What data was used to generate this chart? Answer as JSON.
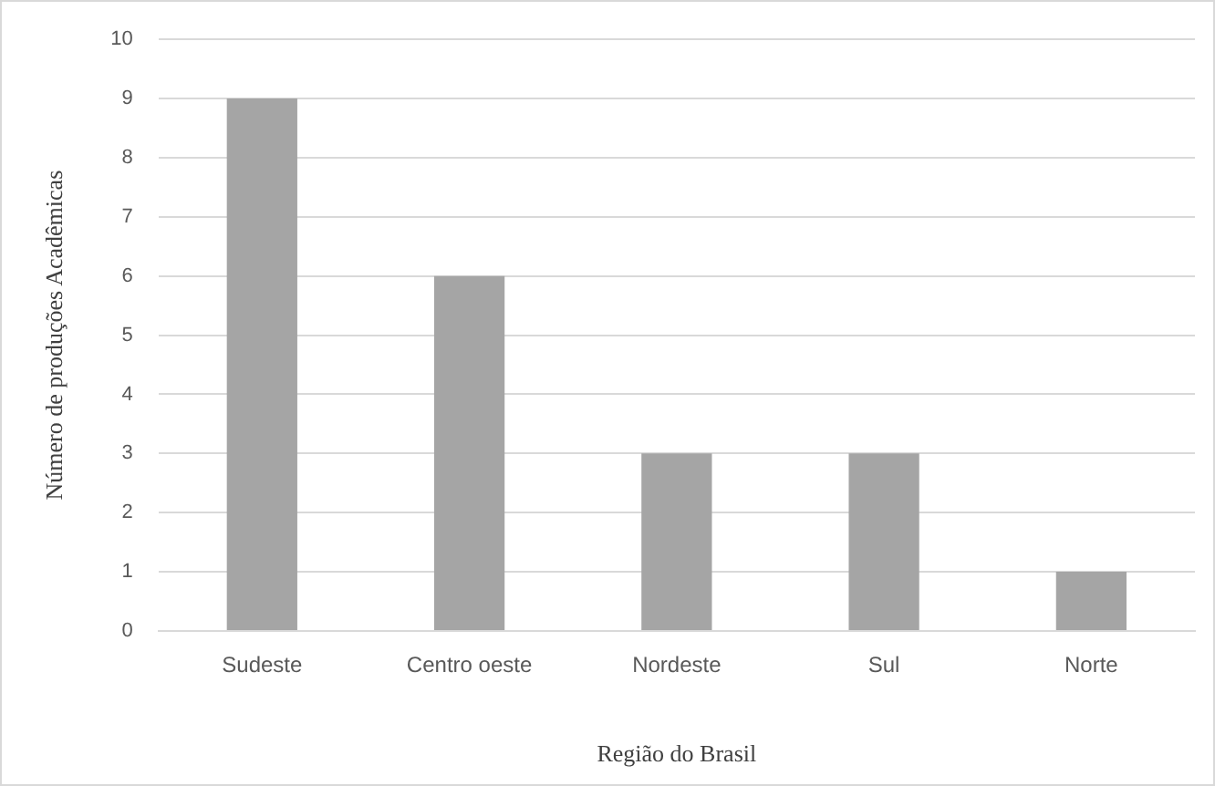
{
  "chart_data": {
    "type": "bar",
    "xlabel": "Região do Brasil",
    "ylabel": "Número de produções Acadêmicas",
    "categories": [
      "Sudeste",
      "Centro oeste",
      "Nordeste",
      "Sul",
      "Norte"
    ],
    "values": [
      9,
      6,
      3,
      3,
      1
    ],
    "color": "#a5a5a5",
    "ylim": [
      0,
      10
    ],
    "yticks": [
      0,
      1,
      2,
      3,
      4,
      5,
      6,
      7,
      8,
      9,
      10
    ],
    "grid": "y",
    "legend": false
  }
}
